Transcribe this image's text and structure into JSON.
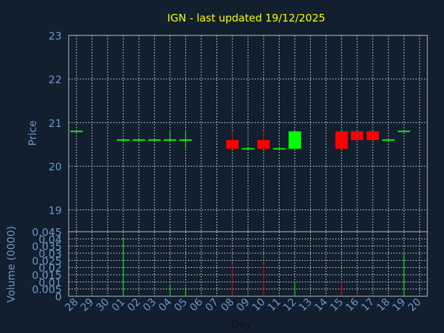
{
  "chart_data": [
    {
      "type": "candlestick",
      "title": "IGN - last updated 19/12/2025",
      "ylabel": "Price",
      "ylim": [
        18.5,
        23
      ],
      "yticks": [
        "19",
        "20",
        "21",
        "22",
        "23"
      ],
      "grid": true,
      "categories": [
        "28",
        "29",
        "30",
        "01",
        "02",
        "03",
        "04",
        "05",
        "06",
        "07",
        "08",
        "09",
        "10",
        "11",
        "12",
        "13",
        "14",
        "15",
        "16",
        "17",
        "18",
        "19",
        "20"
      ],
      "candles": [
        {
          "x": "28",
          "open": 20.8,
          "close": 20.8,
          "high": 20.8,
          "low": 20.8
        },
        {
          "x": "01",
          "open": 20.6,
          "close": 20.6,
          "high": 20.6,
          "low": 20.6
        },
        {
          "x": "02",
          "open": 20.6,
          "close": 20.6,
          "high": 20.6,
          "low": 20.6
        },
        {
          "x": "03",
          "open": 20.6,
          "close": 20.6,
          "high": 20.6,
          "low": 20.6
        },
        {
          "x": "04",
          "open": 20.6,
          "close": 20.6,
          "high": 20.8,
          "low": 20.6
        },
        {
          "x": "05",
          "open": 20.6,
          "close": 20.6,
          "high": 20.8,
          "low": 20.4
        },
        {
          "x": "08",
          "open": 20.6,
          "close": 20.4,
          "high": 20.8,
          "low": 20.4
        },
        {
          "x": "09",
          "open": 20.4,
          "close": 20.4,
          "high": 20.4,
          "low": 20.4
        },
        {
          "x": "10",
          "open": 20.6,
          "close": 20.4,
          "high": 20.8,
          "low": 20.4
        },
        {
          "x": "11",
          "open": 20.4,
          "close": 20.4,
          "high": 20.4,
          "low": 20.4
        },
        {
          "x": "12",
          "open": 20.4,
          "close": 20.8,
          "high": 20.8,
          "low": 20.4
        },
        {
          "x": "15",
          "open": 20.8,
          "close": 20.4,
          "high": 20.8,
          "low": 20.4
        },
        {
          "x": "16",
          "open": 20.8,
          "close": 20.6,
          "high": 20.8,
          "low": 20.6
        },
        {
          "x": "17",
          "open": 20.8,
          "close": 20.6,
          "high": 20.8,
          "low": 20.6
        },
        {
          "x": "18",
          "open": 20.6,
          "close": 20.6,
          "high": 20.6,
          "low": 20.6
        },
        {
          "x": "19",
          "open": 20.8,
          "close": 20.8,
          "high": 20.8,
          "low": 20.8
        }
      ],
      "colors": {
        "up": "#00ff00",
        "down": "#ff0000",
        "background": "#111f2f",
        "grid": "#c0c0c0",
        "axis_text": "#6f95c5",
        "title": "#ffff00"
      }
    },
    {
      "type": "bar",
      "ylabel": "Volume (0000)",
      "xlabel": "Day",
      "ylim": [
        0,
        0.045
      ],
      "yticks": [
        "0",
        "0.005",
        "0.01",
        "0.015",
        "0.02",
        "0.025",
        "0.03",
        "0.035",
        "0.04",
        "0.045"
      ],
      "categories": [
        "28",
        "29",
        "30",
        "01",
        "02",
        "03",
        "04",
        "05",
        "06",
        "07",
        "08",
        "09",
        "10",
        "11",
        "12",
        "13",
        "14",
        "15",
        "16",
        "17",
        "18",
        "19",
        "20"
      ],
      "bars": [
        {
          "x": "01",
          "value": 0.041,
          "color": "#00ff00"
        },
        {
          "x": "04",
          "value": 0.008,
          "color": "#00ff00"
        },
        {
          "x": "05",
          "value": 0.006,
          "color": "#00ff00"
        },
        {
          "x": "08",
          "value": 0.023,
          "color": "#ff0000"
        },
        {
          "x": "10",
          "value": 0.023,
          "color": "#ff0000"
        },
        {
          "x": "12",
          "value": 0.01,
          "color": "#00ff00"
        },
        {
          "x": "15",
          "value": 0.01,
          "color": "#ff0000"
        },
        {
          "x": "16",
          "value": 0.002,
          "color": "#ff0000"
        },
        {
          "x": "19",
          "value": 0.03,
          "color": "#00ff00"
        }
      ]
    }
  ]
}
